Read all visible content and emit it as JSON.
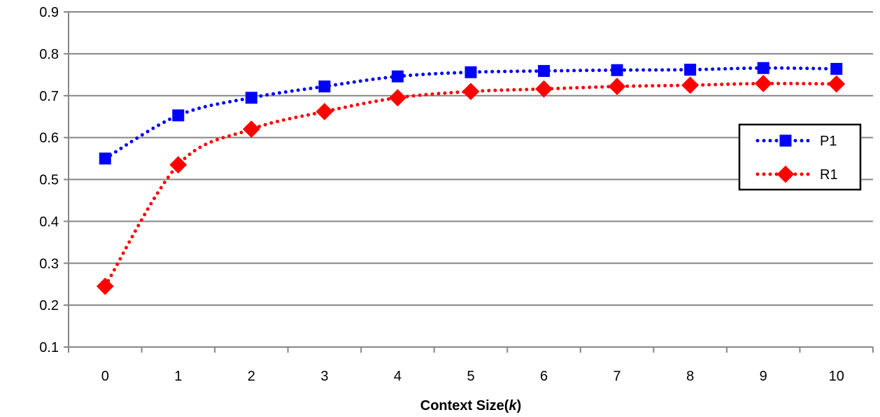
{
  "chart_data": {
    "type": "line",
    "x": [
      0,
      1,
      2,
      3,
      4,
      5,
      6,
      7,
      8,
      9,
      10
    ],
    "x_tick_labels": [
      "0",
      "1",
      "2",
      "3",
      "4",
      "5",
      "6",
      "7",
      "8",
      "9",
      "10"
    ],
    "y_tick_labels": [
      "0.1",
      "0.2",
      "0.3",
      "0.4",
      "0.5",
      "0.6",
      "0.7",
      "0.8",
      "0.9"
    ],
    "ylim": [
      0.1,
      0.9
    ],
    "xlabel_main": "Context Size(",
    "xlabel_var": "k",
    "xlabel_end": ")",
    "ylabel": "",
    "title": "",
    "grid": "horizontal",
    "legend_position": "right",
    "series": [
      {
        "name": "P1",
        "color": "#0000FF",
        "marker": "square",
        "line_style": "dotted",
        "values": [
          0.55,
          0.653,
          0.695,
          0.722,
          0.746,
          0.756,
          0.759,
          0.761,
          0.762,
          0.766,
          0.764
        ]
      },
      {
        "name": "R1",
        "color": "#FF0000",
        "marker": "diamond",
        "line_style": "dotted",
        "values": [
          0.245,
          0.535,
          0.62,
          0.662,
          0.695,
          0.71,
          0.716,
          0.722,
          0.725,
          0.729,
          0.728
        ]
      }
    ]
  }
}
